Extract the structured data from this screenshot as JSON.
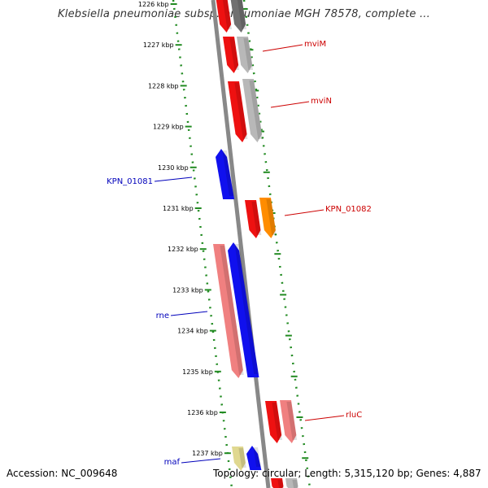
{
  "title": "Klebsiella pneumoniae subsp. pneumoniae MGH 78578, complete ...",
  "footer": {
    "accession": "Accession: NC_009648",
    "summary": "Topology: circular; Length: 5,315,120 bp; Genes: 4,887"
  },
  "ticks": [
    "1226 kbp",
    "1227 kbp",
    "1228 kbp",
    "1229 kbp",
    "1230 kbp",
    "1231 kbp",
    "1232 kbp",
    "1233 kbp",
    "1234 kbp",
    "1235 kbp",
    "1236 kbp",
    "1237 kbp"
  ],
  "gene_labels": [
    {
      "text": "mviM",
      "side": "right",
      "color": "#cc0000"
    },
    {
      "text": "mviN",
      "side": "right",
      "color": "#cc0000"
    },
    {
      "text": "KPN_01081",
      "side": "left",
      "color": "#0000bb"
    },
    {
      "text": "KPN_01082",
      "side": "right",
      "color": "#cc0000"
    },
    {
      "text": "rne",
      "side": "left",
      "color": "#0000bb"
    },
    {
      "text": "rluC",
      "side": "right",
      "color": "#cc0000"
    },
    {
      "text": "maf",
      "side": "left",
      "color": "#0000bb"
    }
  ],
  "colors": {
    "backbone": "#888888",
    "scale_dots": "#228b22",
    "gene_red": "#ee1111",
    "gene_pink": "#f08080",
    "gene_gray": "#b8b8b8",
    "gene_darkgray": "#707070",
    "gene_orange": "#ff8c00",
    "gene_blue": "#1010ee",
    "gene_khaki": "#e0d890"
  }
}
